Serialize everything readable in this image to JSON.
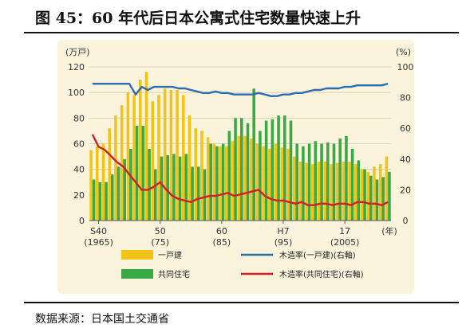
{
  "header": {
    "title": "图 45：60 年代后日本公寓式住宅数量快速上升"
  },
  "footer": {
    "source": "数据来源：日本国土交通省"
  },
  "colors": {
    "detached": "#f2c418",
    "collective": "#3aa845",
    "wood_detached": "#2a6eb0",
    "wood_collective": "#d41e25",
    "plot_bg": "#fbf3dc"
  },
  "chart_data": {
    "type": "bar",
    "title": "",
    "x_unit": "(年)",
    "y_left_unit": "(万戸)",
    "y_right_unit": "(%)",
    "y_left_range": [
      0,
      120
    ],
    "y_right_range": [
      0,
      100
    ],
    "y_left_ticks": [
      "0",
      "20",
      "40",
      "60",
      "80",
      "100",
      "120"
    ],
    "y_right_ticks": [
      "0",
      "20",
      "40",
      "60",
      "80",
      "100"
    ],
    "x_tick_labels": [
      {
        "year": 1965,
        "top": "S40",
        "bottom": "(1965)"
      },
      {
        "year": 1975,
        "top": "50",
        "bottom": "(75)"
      },
      {
        "year": 1985,
        "top": "60",
        "bottom": "(85)"
      },
      {
        "year": 1995,
        "top": "H7",
        "bottom": "(95)"
      },
      {
        "year": 2005,
        "top": "17",
        "bottom": "(2005)"
      }
    ],
    "years": [
      1964,
      1965,
      1966,
      1967,
      1968,
      1969,
      1970,
      1971,
      1972,
      1973,
      1974,
      1975,
      1976,
      1977,
      1978,
      1979,
      1980,
      1981,
      1982,
      1983,
      1984,
      1985,
      1986,
      1987,
      1988,
      1989,
      1990,
      1991,
      1992,
      1993,
      1994,
      1995,
      1996,
      1997,
      1998,
      1999,
      2000,
      2001,
      2002,
      2003,
      2004,
      2005,
      2006,
      2007,
      2008,
      2009,
      2010,
      2011,
      2012
    ],
    "series": [
      {
        "name": "一戸建",
        "axis": "left",
        "kind": "bar",
        "values": [
          55,
          58,
          60,
          72,
          82,
          90,
          100,
          98,
          110,
          116,
          93,
          98,
          103,
          102,
          102,
          98,
          82,
          72,
          70,
          65,
          60,
          58,
          58,
          62,
          66,
          66,
          64,
          60,
          58,
          56,
          60,
          57,
          56,
          50,
          46,
          45,
          44,
          46,
          46,
          44,
          45,
          46,
          46,
          44,
          40,
          38,
          42,
          44,
          50
        ]
      },
      {
        "name": "共同住宅",
        "axis": "left",
        "kind": "bar",
        "values": [
          32,
          30,
          30,
          36,
          42,
          48,
          56,
          74,
          74,
          56,
          40,
          50,
          51,
          52,
          50,
          52,
          42,
          42,
          40,
          60,
          58,
          60,
          70,
          80,
          80,
          76,
          103,
          70,
          78,
          79,
          82,
          82,
          78,
          60,
          58,
          60,
          62,
          60,
          61,
          60,
          64,
          66,
          56,
          47,
          40,
          35,
          32,
          34,
          38
        ]
      },
      {
        "name": "木造率(一戸建)(右軸)",
        "axis": "right",
        "kind": "line",
        "values": [
          89,
          89,
          89,
          89,
          89,
          89,
          89,
          82,
          87,
          85,
          87,
          87,
          87,
          87,
          86,
          86,
          85,
          84,
          83,
          83,
          84,
          83,
          83,
          82,
          82,
          82,
          82,
          83,
          82,
          81,
          81,
          82,
          82,
          83,
          83,
          84,
          85,
          85,
          86,
          86,
          86,
          87,
          87,
          88,
          88,
          88,
          88,
          88,
          89
        ]
      },
      {
        "name": "木造率(共同住宅)(右軸)",
        "axis": "right",
        "kind": "line",
        "values": [
          56,
          48,
          46,
          42,
          38,
          35,
          30,
          25,
          20,
          20,
          22,
          25,
          20,
          16,
          14,
          13,
          12,
          14,
          15,
          16,
          16,
          17,
          18,
          16,
          17,
          18,
          19,
          20,
          16,
          14,
          13,
          13,
          12,
          11,
          12,
          10,
          10,
          11,
          11,
          10,
          11,
          11,
          10,
          12,
          12,
          11,
          11,
          10,
          12
        ]
      }
    ],
    "legend": {
      "placement": "bottom",
      "entries": [
        "一戸建",
        "木造率(一戸建)(右軸)",
        "共同住宅",
        "木造率(共同住宅)(右軸)"
      ]
    },
    "grid": true
  }
}
